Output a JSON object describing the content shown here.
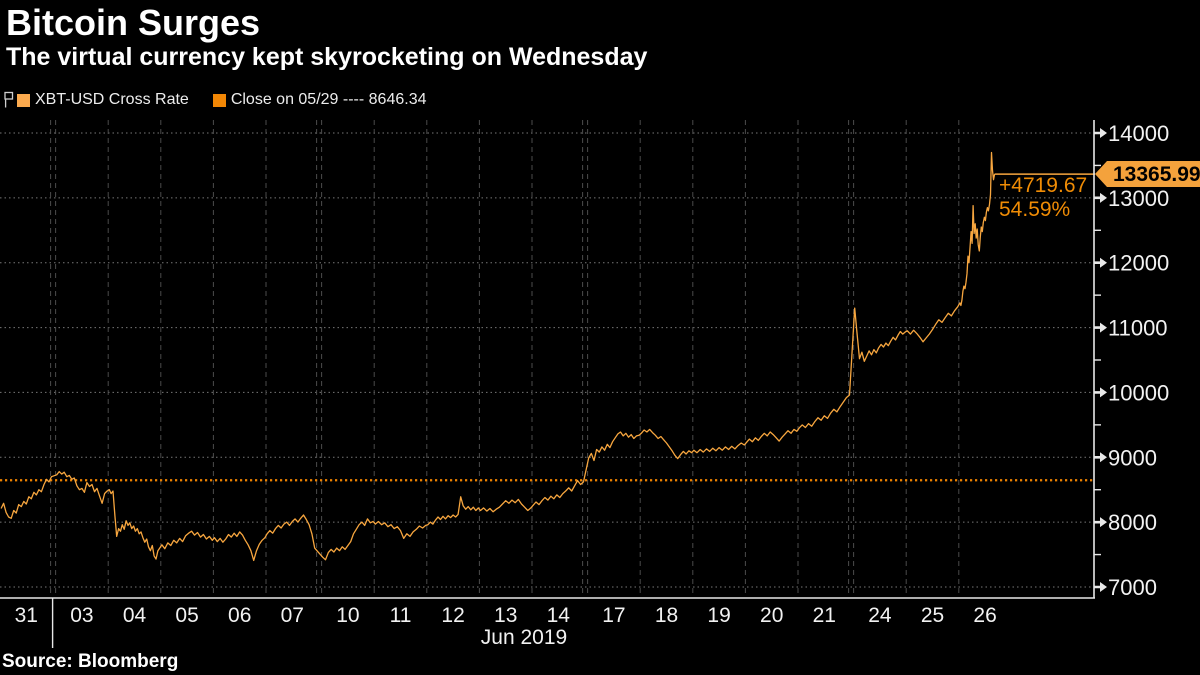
{
  "header": {
    "title": "Bitcoin Surges",
    "subtitle": "The virtual currency kept skyrocketing on Wednesday"
  },
  "legend": {
    "items": [
      {
        "label": "XBT-USD Cross Rate",
        "swatch": "#fbaa4e"
      },
      {
        "label": "Close on 05/29 ---- 8646.34",
        "swatch": "#f28705"
      }
    ]
  },
  "annotations": {
    "last_price": "13365.99",
    "change_abs": "+4719.67",
    "change_pct": "54.59%"
  },
  "footer": {
    "source": "Source: Bloomberg"
  },
  "colors": {
    "line": "#f7a63f",
    "close_line": "#ee8200",
    "grid_v": "#4b4b4b",
    "grid_h": "#777777",
    "axis": "#e8e8e8",
    "tick_label": "#f2f2f2",
    "tag_bg": "#f4a23c",
    "tag_text": "#000000",
    "change_text": "#f08c05"
  },
  "chart_data": {
    "type": "line",
    "title": "XBT-USD Cross Rate",
    "currency": "USD",
    "ylim": [
      7000,
      14000
    ],
    "y_tick_step": 1000,
    "y_minor_step": 500,
    "x_month_label": "Jun 2019",
    "close_line": {
      "label": "Close on 05/29",
      "value": 8646.34
    },
    "last_point": {
      "value": 13365.99,
      "change_abs": 4719.67,
      "change_pct": 54.59
    },
    "weekend_gaps_after": [
      0,
      5,
      10,
      15
    ],
    "last_session_span": 0.7,
    "sessions": [
      {
        "label": "31",
        "prices": [
          8210,
          8290,
          8150,
          8080,
          8060,
          8180,
          8140,
          8270,
          8240,
          8320,
          8280,
          8390,
          8360,
          8460,
          8420,
          8500,
          8470,
          8580,
          8660,
          8620,
          8700
        ]
      },
      {
        "label": "03",
        "prices": [
          8730,
          8780,
          8740,
          8770,
          8700,
          8720,
          8660,
          8680,
          8560,
          8500,
          8520,
          8460,
          8610,
          8550,
          8580,
          8470,
          8520,
          8400,
          8290,
          8440,
          8480
        ]
      },
      {
        "label": "04",
        "prices": [
          8500,
          8440,
          8480,
          8100,
          7780,
          7900,
          7860,
          7960,
          7890,
          8020,
          7950,
          7990,
          7900,
          7940,
          7860,
          7900,
          7820,
          7850,
          7760,
          7690,
          7740,
          7620,
          7560,
          7640,
          7480,
          7430,
          7560,
          7600
        ]
      },
      {
        "label": "05",
        "prices": [
          7650,
          7590,
          7680,
          7640,
          7720,
          7680,
          7750,
          7700,
          7790,
          7830,
          7860,
          7800,
          7840,
          7770,
          7810,
          7740,
          7780,
          7720
        ]
      },
      {
        "label": "06",
        "prices": [
          7760,
          7700,
          7750,
          7690,
          7740,
          7810,
          7770,
          7830,
          7780,
          7850,
          7800,
          7720,
          7650,
          7560,
          7410,
          7560,
          7660,
          7720,
          7760
        ]
      },
      {
        "label": "07",
        "prices": [
          7820,
          7870,
          7830,
          7900,
          7950,
          7910,
          7970,
          8000,
          7950,
          8010,
          8050,
          8000,
          8060,
          8110,
          8040,
          7960,
          7820,
          7600,
          7550
        ]
      },
      {
        "label": "10",
        "prices": [
          7460,
          7420,
          7530,
          7580,
          7540,
          7600,
          7560,
          7620,
          7580,
          7640,
          7700,
          7820,
          7890,
          7960,
          8000,
          7950,
          8050,
          7990,
          8010
        ]
      },
      {
        "label": "11",
        "prices": [
          7970,
          8010,
          7960,
          7990,
          7930,
          7960,
          7900,
          7930,
          7870,
          7750,
          7820,
          7780,
          7850,
          7890,
          7940,
          7910,
          7950
        ]
      },
      {
        "label": "12",
        "prices": [
          7960,
          8000,
          7970,
          8030,
          8080,
          8040,
          8090,
          8050,
          8100,
          8070,
          8110,
          8080,
          8120,
          8390,
          8250,
          8200,
          8240,
          8190,
          8230,
          8180,
          8220
        ]
      },
      {
        "label": "13",
        "prices": [
          8180,
          8220,
          8170,
          8210,
          8160,
          8200,
          8230,
          8280,
          8330,
          8290,
          8340,
          8300,
          8350,
          8280,
          8230,
          8180,
          8220
        ]
      },
      {
        "label": "14",
        "prices": [
          8260,
          8310,
          8270,
          8330,
          8380,
          8340,
          8400,
          8360,
          8420,
          8380,
          8440,
          8480,
          8530,
          8480,
          8560,
          8640,
          8580,
          8620
        ]
      },
      {
        "label": "17",
        "prices": [
          8990,
          9060,
          8950,
          9120,
          9080,
          9160,
          9110,
          9200,
          9150,
          9240,
          9300,
          9360,
          9390,
          9330,
          9370,
          9310,
          9350,
          9290,
          9330,
          9340
        ]
      },
      {
        "label": "18",
        "prices": [
          9370,
          9420,
          9390,
          9430,
          9380,
          9340,
          9290,
          9320,
          9270,
          9220,
          9160,
          9100,
          9030,
          8980,
          9040,
          9090,
          9050,
          9100,
          9070
        ]
      },
      {
        "label": "19",
        "prices": [
          9110,
          9070,
          9120,
          9080,
          9130,
          9090,
          9140,
          9100,
          9150,
          9110,
          9160,
          9120,
          9170,
          9130,
          9180,
          9220,
          9190
        ]
      },
      {
        "label": "20",
        "prices": [
          9230,
          9280,
          9240,
          9300,
          9260,
          9320,
          9370,
          9330,
          9390,
          9350,
          9300,
          9250,
          9310,
          9360,
          9410,
          9370,
          9430,
          9400
        ]
      },
      {
        "label": "21",
        "prices": [
          9450,
          9500,
          9460,
          9520,
          9480,
          9550,
          9610,
          9570,
          9640,
          9600,
          9680,
          9740,
          9700,
          9780,
          9850,
          9920,
          9960
        ]
      },
      {
        "label": "24",
        "prices": [
          11300,
          10900,
          10520,
          10620,
          10480,
          10560,
          10640,
          10580,
          10660,
          10610,
          10690,
          10740,
          10700,
          10760,
          10720,
          10790,
          10850,
          10810,
          10880,
          10940,
          10900,
          10930
        ]
      },
      {
        "label": "25",
        "prices": [
          10950,
          10900,
          10960,
          10910,
          10850,
          10780,
          10840,
          10900,
          10970,
          11050,
          11120,
          11080,
          11150,
          11220,
          11180,
          11260,
          11320
        ]
      },
      {
        "label": "26",
        "prices": [
          11380,
          11340,
          11420,
          11560,
          11640,
          11600,
          11700,
          11830,
          12100,
          12000,
          12250,
          12480,
          12300,
          12880,
          12450,
          12600,
          12380,
          12520,
          12280,
          12180,
          12400,
          12550,
          12480,
          12620,
          12700,
          12650,
          12780,
          12850,
          12800,
          12900,
          13050,
          13700,
          13420,
          13280,
          13365.99
        ]
      }
    ]
  }
}
